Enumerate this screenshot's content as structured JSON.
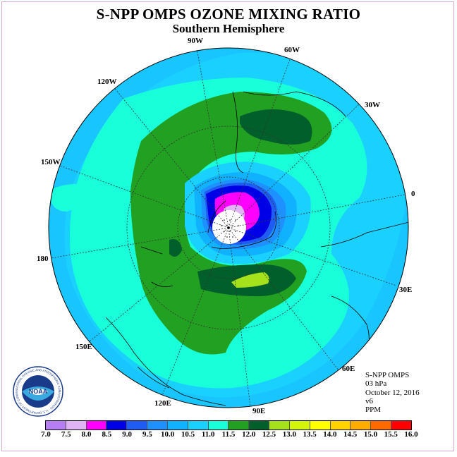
{
  "title": "S-NPP OMPS OZONE MIXING RATIO",
  "subtitle": "Southern Hemisphere",
  "longitude_labels": [
    "90W",
    "60W",
    "30W",
    "0",
    "30E",
    "60E",
    "90E",
    "120E",
    "150E",
    "180",
    "150W",
    "120W"
  ],
  "info": {
    "instrument": "S-NPP OMPS",
    "level": "03 hPa",
    "date": "October 12, 2016",
    "version": "v6",
    "units": "PPM"
  },
  "logo": {
    "text": "NOAA",
    "ring_text": "NATIONAL OCEANIC AND ATMOSPHERIC ADMINISTRATION · U.S. DEPARTMENT OF COMMERCE"
  },
  "colorbar": {
    "labels": [
      "7.0",
      "7.5",
      "8.0",
      "8.5",
      "9.0",
      "9.5",
      "10.0",
      "10.5",
      "11.0",
      "11.5",
      "12.0",
      "12.5",
      "13.0",
      "13.5",
      "14.0",
      "14.5",
      "15.0",
      "15.5",
      "16.0"
    ],
    "colors": [
      "#b57ef2",
      "#e0b4f4",
      "#ff00ff",
      "#0000e6",
      "#1f5cf2",
      "#1e90ff",
      "#10b2ff",
      "#1ad0ff",
      "#19ffd9",
      "#22a022",
      "#005f2a",
      "#a5e21b",
      "#d4f509",
      "#ffff00",
      "#ffd200",
      "#ffab00",
      "#ff6a00",
      "#ff0000",
      "#8b4f3a"
    ]
  },
  "colors": {
    "background": "#19c5ff",
    "level_10_5": "#1ad0ff",
    "level_11_0": "#19ffd9",
    "level_11_5": "#22a022",
    "level_12_0": "#005f2a",
    "level_12_5": "#a5e21b",
    "level_9_5": "#1e90ff",
    "level_9_0": "#1f5cf2",
    "level_8_5": "#0000e6",
    "level_8_0": "#ff00ff",
    "level_7_5": "#e0b4f4"
  }
}
